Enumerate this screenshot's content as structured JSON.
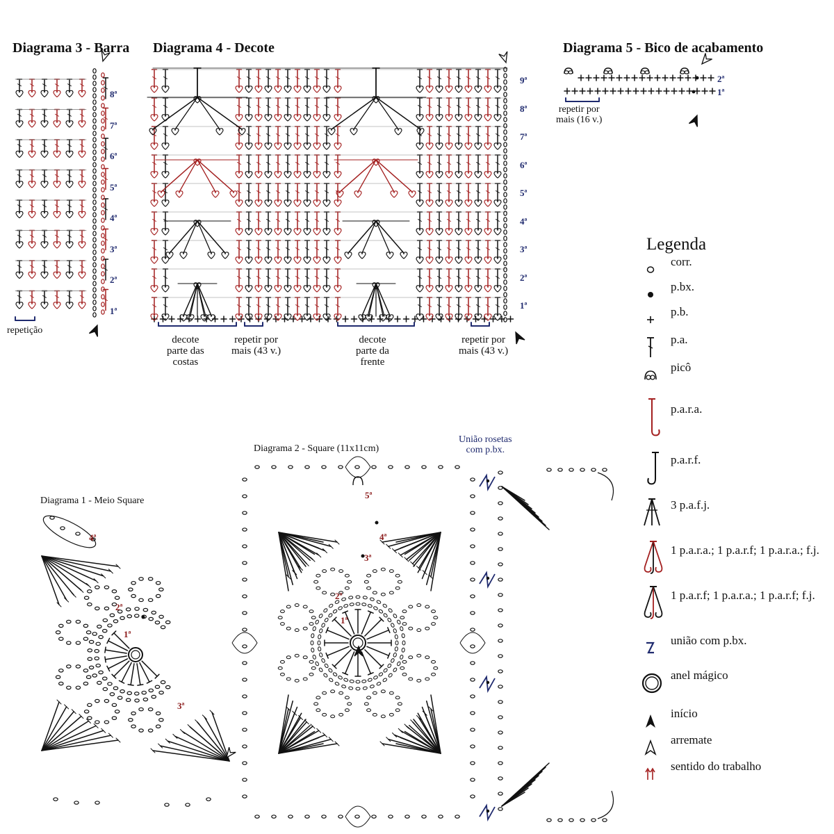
{
  "diagram3": {
    "title": "Diagrama 3 - Barra",
    "rows": [
      "8ª",
      "7ª",
      "6ª",
      "5ª",
      "4ª",
      "3ª",
      "2ª",
      "1ª"
    ],
    "repeat_label": "repetição"
  },
  "diagram4": {
    "title": "Diagrama 4 - Decote",
    "rows": [
      "9ª",
      "8ª",
      "7ª",
      "6ª",
      "5ª",
      "4ª",
      "3ª",
      "2ª",
      "1ª"
    ],
    "label_back": "decote\nparte das\ncostas",
    "label_repeat1": "repetir por\nmais (43 v.)",
    "label_front": "decote\nparte da\nfrente",
    "label_repeat2": "repetir por\nmais (43 v.)"
  },
  "diagram5": {
    "title": "Diagrama 5 - Bico de acabamento",
    "rows": [
      "2ª",
      "1ª"
    ],
    "repeat_label": "repetir por\nmais (16 v.)"
  },
  "diagram2": {
    "title": "Diagrama 2 - Square (11x11cm)",
    "rounds": [
      "1ª",
      "2ª",
      "3ª",
      "4ª",
      "5ª"
    ],
    "union_label": "União rosetas\ncom p.bx."
  },
  "diagram1": {
    "title": "Diagrama 1 - Meio Square",
    "rounds": [
      "1ª",
      "2ª",
      "3ª",
      "4ª"
    ]
  },
  "legend": {
    "title": "Legenda",
    "items": [
      {
        "icon": "chain-icon",
        "label": "corr."
      },
      {
        "icon": "slip-stitch-icon",
        "label": "p.bx."
      },
      {
        "icon": "single-crochet-icon",
        "label": "p.b."
      },
      {
        "icon": "double-crochet-icon",
        "label": "p.a."
      },
      {
        "icon": "picot-icon",
        "label": "picô"
      },
      {
        "icon": "front-post-dc-icon",
        "label": "p.a.r.a."
      },
      {
        "icon": "back-post-dc-icon",
        "label": "p.a.r.f."
      },
      {
        "icon": "dc3tog-icon",
        "label": "3 p.a.f.j."
      },
      {
        "icon": "cluster-front-icon",
        "label": "1 p.a.r.a.; 1 p.a.r.f; 1 p.a.r.a.; f.j."
      },
      {
        "icon": "cluster-back-icon",
        "label": "1 p.a.r.f; 1 p.a.r.a.; 1 p.a.r.f; f.j."
      },
      {
        "icon": "join-icon",
        "label": "união com p.bx."
      },
      {
        "icon": "magic-ring-icon",
        "label": "anel mágico"
      },
      {
        "icon": "start-arrow-icon",
        "label": "início"
      },
      {
        "icon": "finish-arrow-icon",
        "label": "arremate"
      },
      {
        "icon": "direction-arrows-icon",
        "label": "sentido do trabalho"
      }
    ]
  },
  "colors": {
    "ink": "#111111",
    "red": "#a31f1f",
    "blue": "#1f2a6e"
  }
}
